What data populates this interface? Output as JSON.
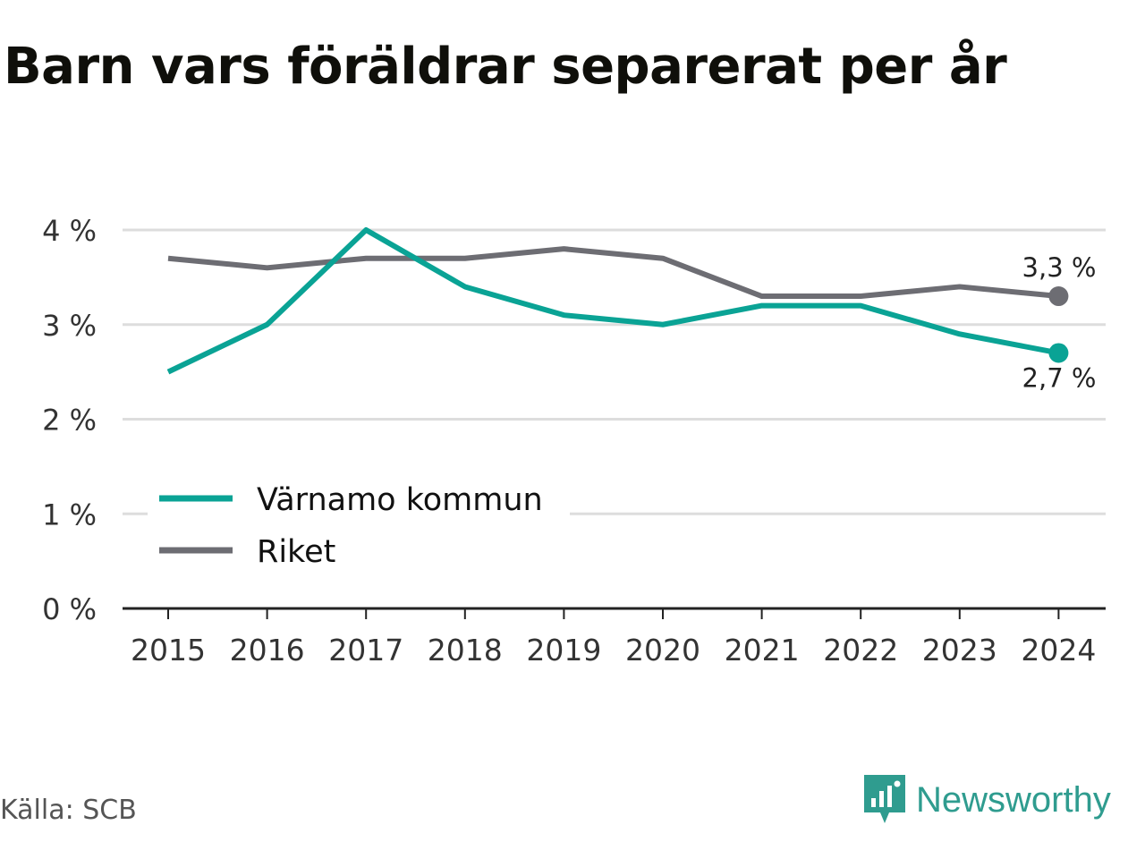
{
  "title": "Barn vars föräldrar separerat per år",
  "source": "Källa: SCB",
  "brand": "Newsworthy",
  "colors": {
    "varnamo": "#0aa395",
    "riket": "#6d6d73",
    "grid": "#dddddd",
    "axis": "#222222"
  },
  "chart_data": {
    "type": "line",
    "title": "Barn vars föräldrar separerat per år",
    "categories": [
      "2015",
      "2016",
      "2017",
      "2018",
      "2019",
      "2020",
      "2021",
      "2022",
      "2023",
      "2024"
    ],
    "series": [
      {
        "name": "Värnamo kommun",
        "color": "#0aa395",
        "values": [
          2.5,
          3.0,
          4.0,
          3.4,
          3.1,
          3.0,
          3.2,
          3.2,
          2.9,
          2.7
        ],
        "end_label": "2,7 %"
      },
      {
        "name": "Riket",
        "color": "#6d6d73",
        "values": [
          3.7,
          3.6,
          3.7,
          3.7,
          3.8,
          3.7,
          3.3,
          3.3,
          3.4,
          3.3
        ],
        "end_label": "3,3 %"
      }
    ],
    "yticks": [
      0,
      1,
      2,
      3,
      4
    ],
    "ytick_labels": [
      "0 %",
      "1 %",
      "2 %",
      "3 %",
      "4 %"
    ],
    "ylim": [
      0,
      4
    ],
    "grid": true,
    "legend": "bottom-left"
  }
}
